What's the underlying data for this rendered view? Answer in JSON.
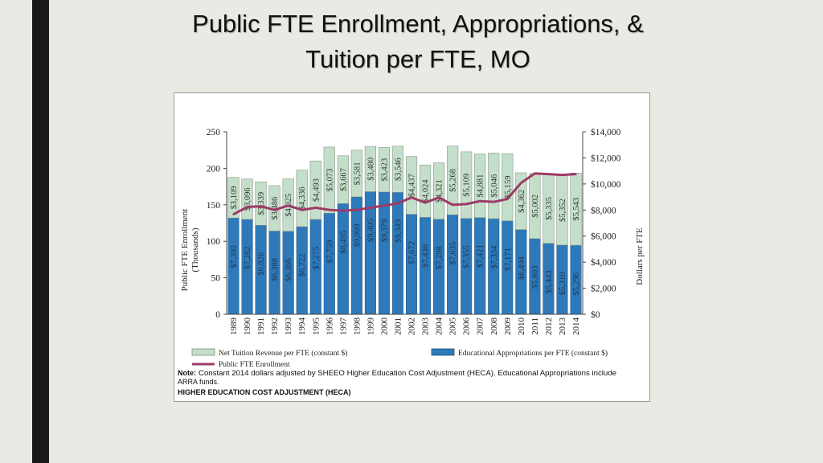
{
  "slide": {
    "title_line1": "Public FTE Enrollment, Appropriations, &",
    "title_line2": "Tuition per FTE, MO"
  },
  "chart_data": {
    "type": "bar",
    "stacked": true,
    "categories": [
      "1989",
      "1990",
      "1991",
      "1992",
      "1993",
      "1994",
      "1995",
      "1996",
      "1997",
      "1998",
      "1999",
      "2000",
      "2001",
      "2002",
      "2003",
      "2004",
      "2005",
      "2006",
      "2007",
      "2008",
      "2009",
      "2010",
      "2011",
      "2012",
      "2013",
      "2014"
    ],
    "series": [
      {
        "name": "Educational Appropriations per FTE (constant $)",
        "color": "#2e79b9",
        "values": [
          7392,
          7282,
          6826,
          6388,
          6366,
          6722,
          7275,
          7759,
          8495,
          9009,
          9405,
          9379,
          9349,
          7672,
          7436,
          7298,
          7635,
          7355,
          7421,
          7334,
          7171,
          6494,
          5803,
          5443,
          5310,
          5296
        ]
      },
      {
        "name": "Net Tuition Revenue per FTE (constant $)",
        "color": "#c4dfc9",
        "values": [
          3109,
          3096,
          3339,
          3486,
          4025,
          4336,
          4493,
          5073,
          3667,
          3581,
          3480,
          3423,
          3546,
          4437,
          4024,
          4321,
          5268,
          5109,
          4881,
          5046,
          5159,
          4362,
          5002,
          5335,
          5352,
          5543
        ]
      },
      {
        "name": "Public FTE Enrollment",
        "color": "#9e3a66",
        "axis": "left",
        "values": [
          137,
          147,
          148,
          143,
          149,
          143,
          146,
          143,
          142,
          143,
          146,
          149,
          152,
          160,
          153,
          160,
          150,
          151,
          155,
          154,
          158,
          180,
          193,
          192,
          191,
          192
        ]
      }
    ],
    "left_axis": {
      "label_line1": "Public FTE Enrollment",
      "label_line2": "(Thousands)",
      "ylim": [
        0,
        250
      ],
      "ticks": [
        "0",
        "50",
        "100",
        "150",
        "200",
        "250"
      ]
    },
    "right_axis": {
      "label": "Dollars per FTE",
      "ylim": [
        0,
        14000
      ],
      "ticks": [
        "$0",
        "$2,000",
        "$4,000",
        "$6,000",
        "$8,000",
        "$10,000",
        "$12,000",
        "$14,000"
      ]
    },
    "legend": {
      "placement": "bottom",
      "tuition": "Net Tuition Revenue per FTE (constant $)",
      "appropriations": "Educational Appropriations per FTE (constant $)",
      "enrollment": "Public FTE Enrollment"
    },
    "note": {
      "label": "Note:",
      "text_line1": "Constant 2014 dollars adjusted by SHEEO Higher Education Cost Adjustment (HECA). Educational Appropriations include",
      "text_line2": "ARRA funds.",
      "heca": "HIGHER EDUCATION COST ADJUSTMENT (HECA)"
    },
    "grid": false
  }
}
